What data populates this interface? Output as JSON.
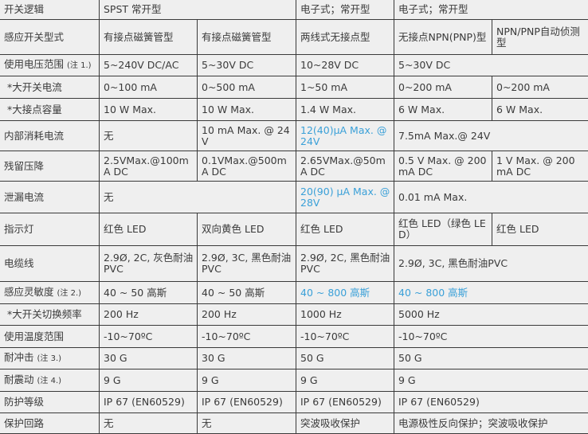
{
  "accent_color": "#3aa0d8",
  "rows": [
    {
      "label": "开关逻辑",
      "cells": [
        {
          "text": "SPST 常开型",
          "span": 2
        },
        {
          "text": "电子式；常开型"
        },
        {
          "text": "电子式；常开型",
          "span": 2
        }
      ]
    },
    {
      "label": "感应开关型式",
      "cells": [
        {
          "text": "有接点磁簧管型"
        },
        {
          "text": "有接点磁簧管型"
        },
        {
          "text": "两线式无接点型"
        },
        {
          "text": "无接点NPN(PNP)型"
        },
        {
          "text": "NPN/PNP自动侦测型"
        }
      ]
    },
    {
      "label": "使用电压范围",
      "note": "(注 1.)",
      "cells": [
        {
          "text": "5~240V DC/AC"
        },
        {
          "text": "5~30V DC"
        },
        {
          "text": "10~28V DC"
        },
        {
          "text": "5~30V DC",
          "span": 2
        }
      ]
    },
    {
      "label": " *大开关电流",
      "cells": [
        {
          "text": "0~100 mA"
        },
        {
          "text": "0~500 mA"
        },
        {
          "text": "1~50 mA"
        },
        {
          "text": "0~200 mA"
        },
        {
          "text": "0~200 mA"
        }
      ]
    },
    {
      "label": " *大接点容量",
      "cells": [
        {
          "text": "10 W Max."
        },
        {
          "text": "10 W Max."
        },
        {
          "text": "1.4 W Max."
        },
        {
          "text": "6 W Max."
        },
        {
          "text": "6 W Max."
        }
      ]
    },
    {
      "label": "内部消耗电流",
      "cells": [
        {
          "text": "无"
        },
        {
          "text": "10 mA Max. @ 24V"
        },
        {
          "text": "12(40)μA Max. @ 24V",
          "hl": true
        },
        {
          "text": "7.5mA Max.@ 24V",
          "span": 2
        }
      ]
    },
    {
      "label": "残留压降",
      "cells": [
        {
          "text": "2.5VMax.@100mA DC"
        },
        {
          "text": "0.1VMax.@500mA DC"
        },
        {
          "text": "2.65VMax.@50mA DC"
        },
        {
          "text": "0.5 V Max. @ 200 mA DC"
        },
        {
          "text": "1 V Max. @ 200 mA DC"
        }
      ]
    },
    {
      "label": "泄漏电流",
      "cells": [
        {
          "text": "无",
          "span": 2
        },
        {
          "text": "20(90) μA Max. @ 28V",
          "hl": true
        },
        {
          "text": "0.01 mA Max.",
          "span": 2
        }
      ]
    },
    {
      "label": "指示灯",
      "cells": [
        {
          "text": "红色  LED"
        },
        {
          "text": "双向黄色  LED"
        },
        {
          "text": "红色  LED"
        },
        {
          "text": "红色 LED（绿色 LED）"
        },
        {
          "text": "红色 LED"
        }
      ]
    },
    {
      "label": "电缆线",
      "cells": [
        {
          "text": "2.9Ø, 2C, 灰色耐油 PVC"
        },
        {
          "text": "2.9Ø, 3C, 黑色耐油 PVC"
        },
        {
          "text": "2.9Ø,  2C,  黑色耐油PVC"
        },
        {
          "text": "2.9Ø, 3C, 黑色耐油PVC",
          "span": 2
        }
      ]
    },
    {
      "label": "感应灵敏度",
      "note": "(注 2.)",
      "cells": [
        {
          "text": "40 ~ 50 高斯"
        },
        {
          "text": "40 ~ 50 高斯"
        },
        {
          "text": "40 ~ 800 高斯",
          "hl": true
        },
        {
          "text": "40 ~ 800 高斯",
          "span": 2,
          "hl": true
        }
      ]
    },
    {
      "label": " *大开关切换频率",
      "cells": [
        {
          "text": "200 Hz"
        },
        {
          "text": "200 Hz"
        },
        {
          "text": "1000 Hz"
        },
        {
          "text": "5000 Hz",
          "span": 2
        }
      ]
    },
    {
      "label": "使用温度范围",
      "cells": [
        {
          "text": "-10~70ºC"
        },
        {
          "text": "-10~70ºC"
        },
        {
          "text": "-10~70ºC"
        },
        {
          "text": "-10~70ºC",
          "span": 2
        }
      ]
    },
    {
      "label": "耐冲击",
      "note": "(注 3.)",
      "cells": [
        {
          "text": "30 G"
        },
        {
          "text": "30 G"
        },
        {
          "text": "50 G"
        },
        {
          "text": "50 G",
          "span": 2
        }
      ]
    },
    {
      "label": "耐震动",
      "note": "(注 4.)",
      "cells": [
        {
          "text": "9 G"
        },
        {
          "text": "9 G"
        },
        {
          "text": "9 G"
        },
        {
          "text": "9 G",
          "span": 2
        }
      ]
    },
    {
      "label": "防护等级",
      "cells": [
        {
          "text": "IP 67 (EN60529)"
        },
        {
          "text": "IP 67 (EN60529)"
        },
        {
          "text": "IP 67 (EN60529)"
        },
        {
          "text": "IP 67 (EN60529)",
          "span": 2
        }
      ]
    },
    {
      "label": "保护回路",
      "cells": [
        {
          "text": "无"
        },
        {
          "text": "无"
        },
        {
          "text": "突波吸收保护"
        },
        {
          "text": "电源极性反向保护；突波吸收保护",
          "span": 2
        }
      ]
    }
  ]
}
